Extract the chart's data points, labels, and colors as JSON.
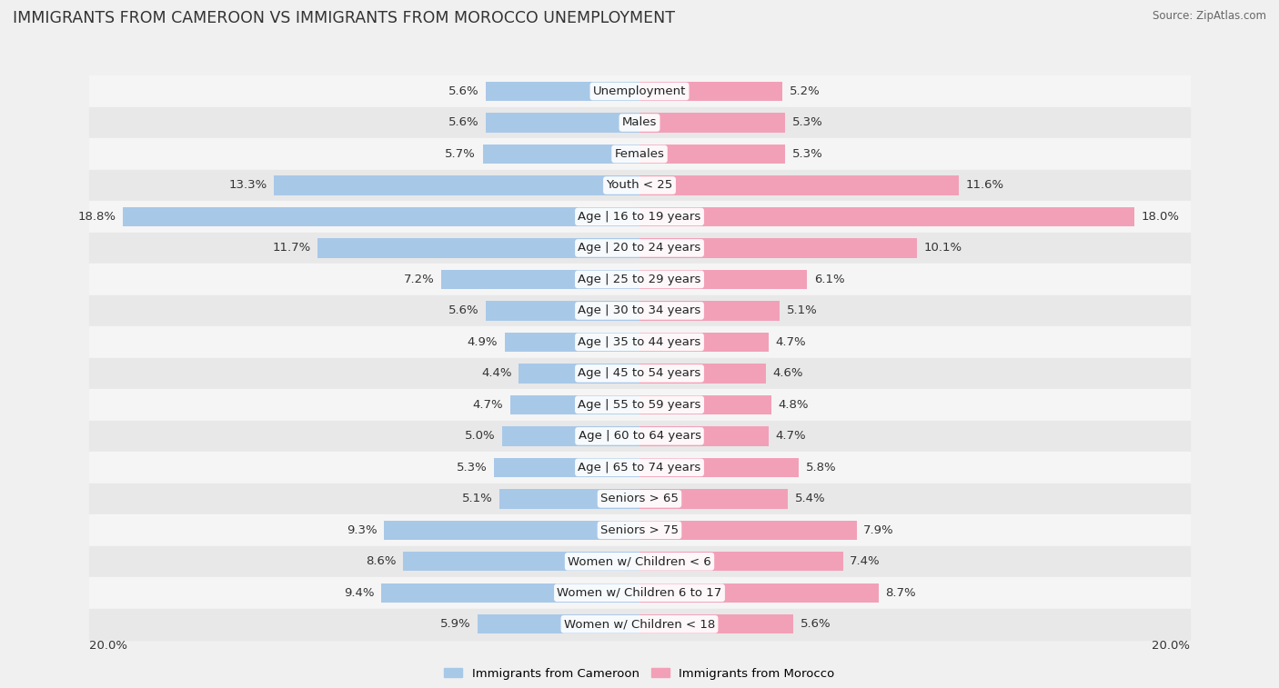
{
  "title": "IMMIGRANTS FROM CAMEROON VS IMMIGRANTS FROM MOROCCO UNEMPLOYMENT",
  "source": "Source: ZipAtlas.com",
  "categories": [
    "Unemployment",
    "Males",
    "Females",
    "Youth < 25",
    "Age | 16 to 19 years",
    "Age | 20 to 24 years",
    "Age | 25 to 29 years",
    "Age | 30 to 34 years",
    "Age | 35 to 44 years",
    "Age | 45 to 54 years",
    "Age | 55 to 59 years",
    "Age | 60 to 64 years",
    "Age | 65 to 74 years",
    "Seniors > 65",
    "Seniors > 75",
    "Women w/ Children < 6",
    "Women w/ Children 6 to 17",
    "Women w/ Children < 18"
  ],
  "cameroon": [
    5.6,
    5.6,
    5.7,
    13.3,
    18.8,
    11.7,
    7.2,
    5.6,
    4.9,
    4.4,
    4.7,
    5.0,
    5.3,
    5.1,
    9.3,
    8.6,
    9.4,
    5.9
  ],
  "morocco": [
    5.2,
    5.3,
    5.3,
    11.6,
    18.0,
    10.1,
    6.1,
    5.1,
    4.7,
    4.6,
    4.8,
    4.7,
    5.8,
    5.4,
    7.9,
    7.4,
    8.7,
    5.6
  ],
  "cameroon_color": "#a8c8e8",
  "morocco_color": "#f2a0b8",
  "bg_color": "#f0f0f0",
  "row_bg_even": "#f5f5f5",
  "row_bg_odd": "#e8e8e8",
  "max_val": 20.0,
  "label_fontsize": 9.5,
  "title_fontsize": 12.5,
  "source_fontsize": 8.5,
  "legend_label_cameroon": "Immigrants from Cameroon",
  "legend_label_morocco": "Immigrants from Morocco"
}
